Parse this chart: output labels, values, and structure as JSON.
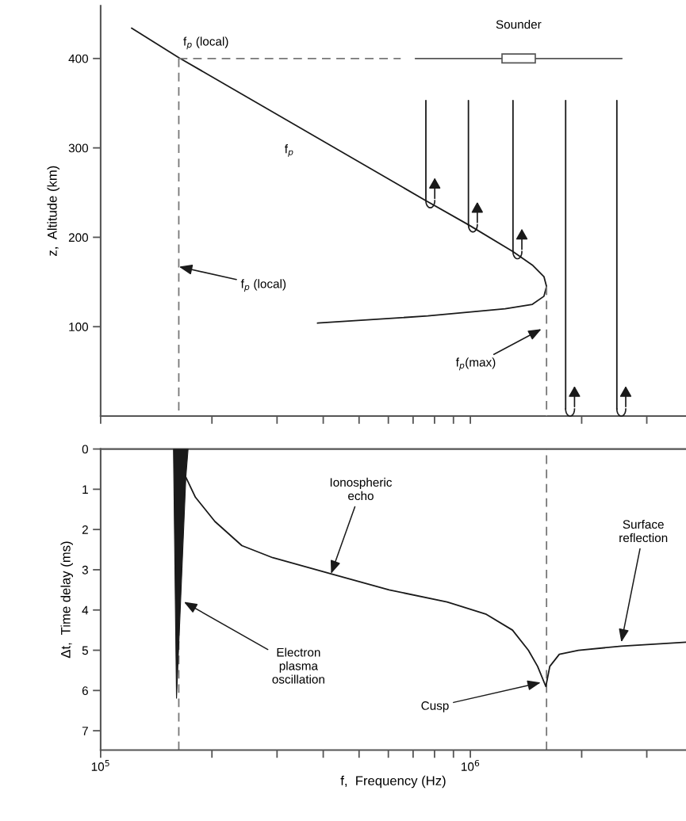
{
  "chart_data": [
    {
      "type": "line",
      "ylabel": "z,  Altitude (km)",
      "xlim": [
        100000,
        3830000
      ],
      "ylim": [
        0,
        459
      ],
      "log": "x",
      "tick_labels": "y",
      "xticks": [
        {
          "value": 100000,
          "label": null
        },
        {
          "value": 200000,
          "label": null
        },
        {
          "value": 300000,
          "label": null
        },
        {
          "value": 400000,
          "label": null
        },
        {
          "value": 500000,
          "label": null
        },
        {
          "value": 600000,
          "label": null
        },
        {
          "value": 700000,
          "label": null
        },
        {
          "value": 800000,
          "label": null
        },
        {
          "value": 900000,
          "label": null
        },
        {
          "value": 1000000,
          "label": null
        },
        {
          "value": 2000000,
          "label": null
        },
        {
          "value": 3000000,
          "label": null
        }
      ],
      "yticks": [
        100,
        200,
        300,
        400
      ],
      "series": [
        {
          "color": "#1a1a1a",
          "line_style": "solid",
          "x": [
            121300,
            162700,
            758000,
            988000,
            1304000,
            1471000,
            1581000,
            1607000,
            1581000,
            1471000,
            1242000,
            767000,
            386000
          ],
          "values": [
            434,
            401,
            241,
            214,
            184,
            169,
            156,
            145,
            134,
            125,
            120,
            112,
            104
          ]
        },
        {
          "color": "#555555",
          "line_style": "solid",
          "x": [
            710000,
            2570000
          ],
          "values": [
            400,
            400
          ]
        },
        {
          "color": "#777777",
          "line_style": "dashed",
          "x": [
            162700,
            648000
          ],
          "values": [
            400,
            400
          ]
        },
        {
          "color": "#777777",
          "line_style": "dashed",
          "x": [
            162700,
            162700
          ],
          "values": [
            400,
            0
          ]
        },
        {
          "color": "#777777",
          "line_style": "dashed",
          "x": [
            1607000,
            1607000
          ],
          "values": [
            145,
            0
          ]
        },
        {
          "color": "#1a1a1a",
          "line_style": "solid",
          "x": [
            758000,
            758000
          ],
          "values": [
            353,
            241
          ]
        },
        {
          "color": "#1a1a1a",
          "line_style": "solid",
          "x": [
            988000,
            988000
          ],
          "values": [
            353,
            214
          ]
        },
        {
          "color": "#1a1a1a",
          "line_style": "solid",
          "x": [
            1304000,
            1304000
          ],
          "values": [
            353,
            184
          ]
        },
        {
          "color": "#1a1a1a",
          "line_style": "solid",
          "x": [
            1810000,
            1810000
          ],
          "values": [
            353,
            8
          ]
        },
        {
          "color": "#1a1a1a",
          "line_style": "solid",
          "x": [
            2490000,
            2490000
          ],
          "values": [
            353,
            8
          ]
        }
      ],
      "annotations": [
        {
          "text": "f$_{p}$ (local)",
          "x": 162700,
          "y": 400
        },
        "f$_{p}$",
        {
          "text": "f$_{p}$ (local)",
          "x": 163000,
          "y": 167
        },
        "f$_{p}$(max)",
        {
          "text": "Sounder",
          "x": 1350000,
          "y": 400
        }
      ]
    },
    {
      "type": "line",
      "xlabel": "f,  Frequency (Hz)",
      "ylabel": "Δt,  Time delay (ms)",
      "xlim": [
        100000,
        3830000
      ],
      "ylim": [
        7.48,
        0
      ],
      "log": "x",
      "xticks": [
        {
          "value": 100000,
          "label": "10$^{5}$"
        },
        {
          "value": 200000,
          "label": null
        },
        {
          "value": 300000,
          "label": null
        },
        {
          "value": 400000,
          "label": null
        },
        {
          "value": 500000,
          "label": null
        },
        {
          "value": 600000,
          "label": null
        },
        {
          "value": 700000,
          "label": null
        },
        {
          "value": 800000,
          "label": null
        },
        {
          "value": 900000,
          "label": null
        },
        {
          "value": 1000000,
          "label": "10$^{6}$"
        },
        {
          "value": 2000000,
          "label": null
        },
        {
          "value": 3000000,
          "label": null
        }
      ],
      "yticks": [
        0,
        1,
        2,
        3,
        4,
        5,
        6,
        7
      ],
      "ref_lines": [
        {
          "axis": "x",
          "value": 162700,
          "color": "#777777",
          "line_style": "dashed"
        },
        {
          "axis": "x",
          "value": 1607000,
          "color": "#777777",
          "line_style": "dashed"
        }
      ],
      "series": [
        {
          "type": "area",
          "color": "#1a1a1a",
          "x": [
            157400,
            172400,
            170000,
            160400
          ],
          "values": [
            0,
            0,
            0.7,
            6.2
          ]
        },
        {
          "type": "line",
          "color": "#1a1a1a",
          "line_style": "solid",
          "x": [
            170000,
            180500,
            203700,
            241000,
            292000,
            420000,
            603000,
            865000,
            1100000,
            1300000,
            1435000,
            1520000,
            1600000,
            1640000,
            1740000,
            1960000,
            2560000,
            3830000
          ],
          "values": [
            0.7,
            1.2,
            1.8,
            2.4,
            2.7,
            3.1,
            3.5,
            3.8,
            4.1,
            4.5,
            5.0,
            5.4,
            5.9,
            5.4,
            5.1,
            5.0,
            4.9,
            4.8
          ]
        }
      ],
      "annotations": [
        {
          "text": "Ionospheric\necho",
          "x": 420000,
          "y": 3.1
        },
        {
          "text": "Electron\nplasma\noscillation",
          "x": 168000,
          "y": 3.8
        },
        {
          "text": "Cusp",
          "x": 1550000,
          "y": 5.8
        },
        {
          "text": "Surface\nreflection",
          "x": 2560000,
          "y": 4.8
        }
      ]
    }
  ]
}
